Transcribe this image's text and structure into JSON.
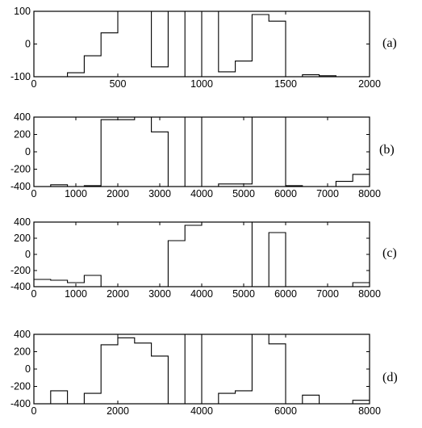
{
  "chart_data": [
    {
      "type": "line",
      "label": "(a)",
      "xlim": [
        0,
        2000
      ],
      "ylim": [
        -100,
        100
      ],
      "xticks": [
        0,
        500,
        1000,
        1500,
        2000
      ],
      "yticks": [
        -100,
        0,
        100
      ],
      "x": [
        0,
        200,
        200,
        300,
        300,
        400,
        400,
        500,
        500,
        700,
        700,
        800,
        800,
        900,
        900,
        1000,
        1000,
        1100,
        1100,
        1200,
        1200,
        1300,
        1300,
        1400,
        1400,
        1500,
        1500,
        1600,
        1600,
        1700,
        1700,
        1800,
        1800,
        2000
      ],
      "y": [
        -100,
        -100,
        -88,
        -88,
        -36,
        -36,
        34,
        34,
        100,
        100,
        -70,
        -70,
        100,
        100,
        -100,
        -100,
        100,
        100,
        -85,
        -85,
        -52,
        -52,
        90,
        90,
        70,
        70,
        -100,
        -100,
        -94,
        -94,
        -97,
        -97,
        -100,
        -100
      ]
    },
    {
      "type": "line",
      "label": "(b)",
      "xlim": [
        0,
        8000
      ],
      "ylim": [
        -400,
        400
      ],
      "xticks": [
        0,
        1000,
        2000,
        3000,
        4000,
        5000,
        6000,
        7000,
        8000
      ],
      "yticks": [
        -400,
        -200,
        0,
        200,
        400
      ],
      "x": [
        0,
        400,
        400,
        800,
        800,
        1200,
        1200,
        1600,
        1600,
        2400,
        2400,
        2800,
        2800,
        3200,
        3200,
        3600,
        3600,
        4000,
        4000,
        4400,
        4400,
        5200,
        5200,
        6000,
        6000,
        6400,
        6400,
        6800,
        6800,
        7200,
        7200,
        7600,
        7600,
        8000
      ],
      "y": [
        -400,
        -400,
        -380,
        -380,
        -400,
        -400,
        -390,
        -390,
        370,
        370,
        400,
        400,
        230,
        230,
        -400,
        -400,
        400,
        400,
        -400,
        -400,
        -370,
        -370,
        400,
        400,
        -390,
        -390,
        -400,
        -400,
        -400,
        -400,
        -340,
        -340,
        -260,
        -260
      ]
    },
    {
      "type": "line",
      "label": "(c)",
      "xlim": [
        0,
        8000
      ],
      "ylim": [
        -400,
        400
      ],
      "xticks": [
        0,
        1000,
        2000,
        3000,
        4000,
        5000,
        6000,
        7000,
        8000
      ],
      "yticks": [
        -400,
        -200,
        0,
        200,
        400
      ],
      "x": [
        0,
        400,
        400,
        800,
        800,
        1200,
        1200,
        1600,
        1600,
        3200,
        3200,
        3600,
        3600,
        4000,
        4000,
        5200,
        5200,
        5600,
        5600,
        6000,
        6000,
        7600,
        7600,
        8000
      ],
      "y": [
        -310,
        -310,
        -320,
        -320,
        -350,
        -350,
        -260,
        -260,
        -400,
        -400,
        170,
        170,
        360,
        360,
        400,
        400,
        -400,
        -400,
        270,
        270,
        -400,
        -400,
        -350,
        -350
      ]
    },
    {
      "type": "line",
      "label": "(d)",
      "xlim": [
        0,
        8000
      ],
      "ylim": [
        -400,
        400
      ],
      "xticks": [
        0,
        2000,
        4000,
        6000,
        8000
      ],
      "yticks": [
        -400,
        -200,
        0,
        200,
        400
      ],
      "x": [
        0,
        400,
        400,
        800,
        800,
        1200,
        1200,
        1600,
        1600,
        2000,
        2000,
        2400,
        2400,
        2800,
        2800,
        3200,
        3200,
        3600,
        3600,
        4000,
        4000,
        4400,
        4400,
        4800,
        4800,
        5200,
        5200,
        5600,
        5600,
        6000,
        6000,
        6400,
        6400,
        6800,
        6800,
        7600,
        7600,
        8000
      ],
      "y": [
        -400,
        -400,
        -250,
        -250,
        -400,
        -400,
        -280,
        -280,
        280,
        280,
        360,
        360,
        300,
        300,
        150,
        150,
        -400,
        -400,
        400,
        400,
        -400,
        -400,
        -280,
        -280,
        -250,
        -250,
        400,
        400,
        290,
        290,
        -400,
        -400,
        -300,
        -300,
        -400,
        -400,
        -360,
        -360
      ]
    }
  ]
}
